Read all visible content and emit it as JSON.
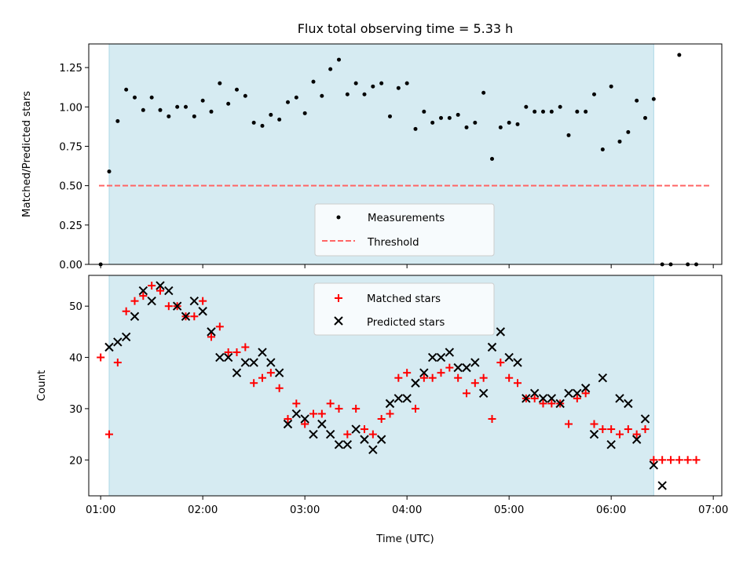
{
  "chart_data": [
    {
      "type": "scatter",
      "panel": "top",
      "title": "Flux total observing time = 5.33 h",
      "xlabel": "",
      "ylabel": "Matched/Predicted stars",
      "xlim": [
        "00:53",
        "07:05"
      ],
      "ylim": [
        0,
        1.4
      ],
      "yticks": [
        0.0,
        0.25,
        0.5,
        0.75,
        1.0,
        1.25
      ],
      "ytick_labels": [
        "0.00",
        "0.25",
        "0.50",
        "0.75",
        "1.00",
        "1.25"
      ],
      "x_ticks_shown_without_labels": [
        "01:00",
        "02:00",
        "03:00",
        "04:00",
        "05:00",
        "06:00",
        "07:00"
      ],
      "shaded_span": {
        "start": "01:05",
        "end": "06:25",
        "color": "#add8e6"
      },
      "threshold": {
        "value": 0.5,
        "from": "00:59",
        "to": "06:59",
        "color": "#ff6666",
        "style": "dashed"
      },
      "legend": {
        "placement": "lower-center",
        "entries": [
          "Measurements",
          "Threshold"
        ]
      },
      "series": [
        {
          "name": "Measurements",
          "marker": "dot",
          "color": "#000000",
          "x": [
            "01:00",
            "01:05",
            "01:10",
            "01:15",
            "01:20",
            "01:25",
            "01:30",
            "01:35",
            "01:40",
            "01:45",
            "01:50",
            "01:55",
            "02:00",
            "02:05",
            "02:10",
            "02:15",
            "02:20",
            "02:25",
            "02:30",
            "02:35",
            "02:40",
            "02:45",
            "02:50",
            "02:55",
            "03:00",
            "03:05",
            "03:10",
            "03:15",
            "03:20",
            "03:25",
            "03:30",
            "03:35",
            "03:40",
            "03:45",
            "03:50",
            "03:55",
            "04:00",
            "04:05",
            "04:10",
            "04:15",
            "04:20",
            "04:25",
            "04:30",
            "04:35",
            "04:40",
            "04:45",
            "04:50",
            "04:55",
            "05:00",
            "05:05",
            "05:10",
            "05:15",
            "05:20",
            "05:25",
            "05:30",
            "05:35",
            "05:40",
            "05:45",
            "05:50",
            "05:55",
            "06:00",
            "06:05",
            "06:10",
            "06:15",
            "06:20",
            "06:25",
            "06:30",
            "06:35",
            "06:40",
            "06:45",
            "06:50"
          ],
          "y": [
            0.0,
            0.59,
            0.91,
            1.11,
            1.06,
            0.98,
            1.06,
            0.98,
            0.94,
            1.0,
            1.0,
            0.94,
            1.04,
            0.97,
            1.15,
            1.02,
            1.11,
            1.07,
            0.9,
            0.88,
            0.95,
            0.92,
            1.03,
            1.06,
            0.96,
            1.16,
            1.07,
            1.24,
            1.3,
            1.08,
            1.15,
            1.08,
            1.13,
            1.15,
            0.94,
            1.12,
            1.15,
            0.86,
            0.97,
            0.9,
            0.93,
            0.93,
            0.95,
            0.87,
            0.9,
            1.09,
            0.67,
            0.87,
            0.9,
            0.89,
            1.0,
            0.97,
            0.97,
            0.97,
            1.0,
            0.82,
            0.97,
            0.97,
            1.08,
            0.73,
            1.13,
            0.78,
            0.84,
            1.04,
            0.93,
            1.05,
            0.0,
            0.0,
            1.33,
            0.0,
            0.0
          ]
        }
      ]
    },
    {
      "type": "scatter",
      "panel": "bottom",
      "title": "",
      "xlabel": "Time (UTC)",
      "ylabel": "Count",
      "xlim": [
        "00:53",
        "07:05"
      ],
      "ylim": [
        13,
        56
      ],
      "xticks": [
        "01:00",
        "02:00",
        "03:00",
        "04:00",
        "05:00",
        "06:00",
        "07:00"
      ],
      "yticks": [
        20,
        30,
        40,
        50
      ],
      "ytick_labels": [
        "20",
        "30",
        "40",
        "50"
      ],
      "shaded_span": {
        "start": "01:05",
        "end": "06:25",
        "color": "#add8e6"
      },
      "legend": {
        "placement": "upper-center",
        "entries": [
          "Matched stars",
          "Predicted stars"
        ]
      },
      "series": [
        {
          "name": "Matched stars",
          "marker": "plus",
          "color": "#ff0000",
          "x": [
            "01:00",
            "01:05",
            "01:10",
            "01:15",
            "01:20",
            "01:25",
            "01:30",
            "01:35",
            "01:40",
            "01:45",
            "01:50",
            "01:55",
            "02:00",
            "02:05",
            "02:10",
            "02:15",
            "02:20",
            "02:25",
            "02:30",
            "02:35",
            "02:40",
            "02:45",
            "02:50",
            "02:55",
            "03:00",
            "03:05",
            "03:10",
            "03:15",
            "03:20",
            "03:25",
            "03:30",
            "03:35",
            "03:40",
            "03:45",
            "03:50",
            "03:55",
            "04:00",
            "04:05",
            "04:10",
            "04:15",
            "04:20",
            "04:25",
            "04:30",
            "04:35",
            "04:40",
            "04:45",
            "04:50",
            "04:55",
            "05:00",
            "05:05",
            "05:10",
            "05:15",
            "05:20",
            "05:25",
            "05:30",
            "05:35",
            "05:40",
            "05:45",
            "05:50",
            "05:55",
            "06:00",
            "06:05",
            "06:10",
            "06:15",
            "06:20",
            "06:25",
            "06:30",
            "06:35",
            "06:40",
            "06:45",
            "06:50"
          ],
          "y": [
            40,
            25,
            39,
            49,
            51,
            52,
            54,
            53,
            50,
            50,
            48,
            48,
            51,
            44,
            46,
            41,
            41,
            42,
            35,
            36,
            37,
            34,
            28,
            31,
            27,
            29,
            29,
            31,
            30,
            25,
            30,
            26,
            25,
            28,
            29,
            36,
            37,
            30,
            36,
            36,
            37,
            38,
            36,
            33,
            35,
            36,
            28,
            39,
            36,
            35,
            32,
            32,
            31,
            31,
            31,
            27,
            32,
            33,
            27,
            26,
            26,
            25,
            26,
            25,
            26,
            20,
            20,
            20,
            20,
            20,
            20
          ]
        },
        {
          "name": "Predicted stars",
          "marker": "x",
          "color": "#000000",
          "x": [
            "01:05",
            "01:10",
            "01:15",
            "01:20",
            "01:25",
            "01:30",
            "01:35",
            "01:40",
            "01:45",
            "01:50",
            "01:55",
            "02:00",
            "02:05",
            "02:10",
            "02:15",
            "02:20",
            "02:25",
            "02:30",
            "02:35",
            "02:40",
            "02:45",
            "02:50",
            "02:55",
            "03:00",
            "03:05",
            "03:10",
            "03:15",
            "03:20",
            "03:25",
            "03:30",
            "03:35",
            "03:40",
            "03:45",
            "03:50",
            "03:55",
            "04:00",
            "04:05",
            "04:10",
            "04:15",
            "04:20",
            "04:25",
            "04:30",
            "04:35",
            "04:40",
            "04:45",
            "04:50",
            "04:55",
            "05:00",
            "05:05",
            "05:10",
            "05:15",
            "05:20",
            "05:25",
            "05:30",
            "05:35",
            "05:40",
            "05:45",
            "05:50",
            "05:55",
            "06:00",
            "06:05",
            "06:10",
            "06:15",
            "06:20",
            "06:25",
            "06:30"
          ],
          "y": [
            42,
            43,
            44,
            48,
            53,
            51,
            54,
            53,
            50,
            48,
            51,
            49,
            45,
            40,
            40,
            37,
            39,
            39,
            41,
            39,
            37,
            27,
            29,
            28,
            25,
            27,
            25,
            23,
            23,
            26,
            24,
            22,
            24,
            31,
            32,
            32,
            35,
            37,
            40,
            40,
            41,
            38,
            38,
            39,
            33,
            42,
            45,
            40,
            39,
            32,
            33,
            32,
            32,
            31,
            33,
            33,
            34,
            25,
            36,
            23,
            32,
            31,
            24,
            28,
            19,
            15
          ]
        }
      ]
    }
  ]
}
